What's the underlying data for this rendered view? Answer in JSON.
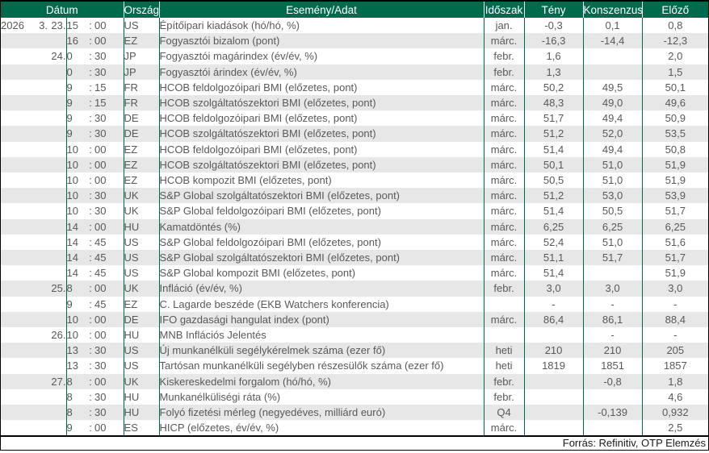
{
  "table": {
    "headers": {
      "datum": "Dátum",
      "orszag": "Ország",
      "esemeny": "Esemény/Adat",
      "idoszak": "Időszak",
      "teny": "Tény",
      "konszenzus": "Konszenzus",
      "elozo": "Előző"
    },
    "time_separator": ":",
    "rows": [
      [
        "2026",
        "3.",
        "23.",
        "15",
        "00",
        "US",
        "Építőipari kiadások (hó/hó, %)",
        "jan.",
        "-0,3",
        "0,1",
        "0,8"
      ],
      [
        "",
        "",
        "",
        "16",
        "00",
        "EZ",
        "Fogyasztói bizalom (pont)",
        "márc.",
        "-16,3",
        "-14,4",
        "-12,3"
      ],
      [
        "",
        "",
        "24.",
        "0",
        "30",
        "JP",
        "Fogyasztói magárindex (év/év, %)",
        "febr.",
        "1,6",
        "",
        "2,0"
      ],
      [
        "",
        "",
        "",
        "0",
        "30",
        "JP",
        "Fogyasztói árindex (év/év, %)",
        "febr.",
        "1,3",
        "",
        "1,5"
      ],
      [
        "",
        "",
        "",
        "9",
        "15",
        "FR",
        "HCOB feldolgozóipari BMI (előzetes, pont)",
        "márc.",
        "50,2",
        "49,5",
        "50,1"
      ],
      [
        "",
        "",
        "",
        "9",
        "15",
        "FR",
        "HCOB szolgáltatószektori BMI (előzetes, pont)",
        "márc.",
        "48,3",
        "49,0",
        "49,6"
      ],
      [
        "",
        "",
        "",
        "9",
        "30",
        "DE",
        "HCOB feldolgozóipari BMI (előzetes, pont)",
        "márc.",
        "51,7",
        "49,4",
        "50,9"
      ],
      [
        "",
        "",
        "",
        "9",
        "30",
        "DE",
        "HCOB szolgáltatószektori BMI (előzetes, pont)",
        "márc.",
        "51,2",
        "52,0",
        "53,5"
      ],
      [
        "",
        "",
        "",
        "10",
        "00",
        "EZ",
        "HCOB feldolgozóipari BMI (előzetes, pont)",
        "márc.",
        "51,4",
        "49,4",
        "50,8"
      ],
      [
        "",
        "",
        "",
        "10",
        "00",
        "EZ",
        "HCOB szolgáltatószektori BMI (előzetes, pont)",
        "márc.",
        "50,1",
        "51,0",
        "51,9"
      ],
      [
        "",
        "",
        "",
        "10",
        "00",
        "EZ",
        "HCOB kompozit BMI (előzetes, pont)",
        "márc.",
        "50,5",
        "51,0",
        "51,9"
      ],
      [
        "",
        "",
        "",
        "10",
        "30",
        "UK",
        "S&P Global szolgáltatószektori BMI (előzetes, pont)",
        "márc.",
        "51,2",
        "53,0",
        "53,9"
      ],
      [
        "",
        "",
        "",
        "10",
        "30",
        "UK",
        "S&P Global feldolgozóipari BMI (előzetes, pont)",
        "márc.",
        "51,4",
        "50,5",
        "51,7"
      ],
      [
        "",
        "",
        "",
        "14",
        "00",
        "HU",
        "Kamatdöntés (%)",
        "márc.",
        "6,25",
        "6,25",
        "6,25"
      ],
      [
        "",
        "",
        "",
        "14",
        "45",
        "US",
        "S&P Global feldolgozóipari BMI (előzetes, pont)",
        "márc.",
        "52,4",
        "51,0",
        "51,6"
      ],
      [
        "",
        "",
        "",
        "14",
        "45",
        "US",
        "S&P Global szolgáltatószektori BMI (előzetes, pont)",
        "márc.",
        "51,1",
        "51,7",
        "51,7"
      ],
      [
        "",
        "",
        "",
        "14",
        "45",
        "US",
        "S&P Global kompozit BMI (előzetes, pont)",
        "márc.",
        "51,4",
        "",
        "51,9"
      ],
      [
        "",
        "",
        "25.",
        "8",
        "00",
        "UK",
        "Infláció (év/év, %)",
        "febr.",
        "3,0",
        "3,0",
        "3,0"
      ],
      [
        "",
        "",
        "",
        "9",
        "45",
        "EZ",
        "C. Lagarde beszéde (EKB Watchers konferencia)",
        "",
        "-",
        "-",
        "-"
      ],
      [
        "",
        "",
        "",
        "10",
        "00",
        "DE",
        "IFO gazdasági hangulat index (pont)",
        "márc.",
        "86,4",
        "86,1",
        "88,4"
      ],
      [
        "",
        "",
        "26.",
        "10",
        "00",
        "HU",
        "MNB Inflációs Jelentés",
        "",
        "",
        "-",
        "-"
      ],
      [
        "",
        "",
        "",
        "13",
        "30",
        "US",
        "Új munkanélküli segélykérelmek száma (ezer fő)",
        "heti",
        "210",
        "210",
        "205"
      ],
      [
        "",
        "",
        "",
        "13",
        "30",
        "US",
        "Tartósan munkanélküli segélyben részesülők száma (ezer fő)",
        "heti",
        "1819",
        "1851",
        "1857"
      ],
      [
        "",
        "",
        "27.",
        "8",
        "00",
        "UK",
        "Kiskereskedelmi forgalom (hó/hó, %)",
        "febr.",
        "",
        "-0,8",
        "1,8"
      ],
      [
        "",
        "",
        "",
        "8",
        "30",
        "HU",
        "Munkanélküliségi ráta (%)",
        "febr.",
        "",
        "",
        "4,6"
      ],
      [
        "",
        "",
        "",
        "8",
        "30",
        "HU",
        "Folyó fizetési mérleg (negyedéves, milliárd euró)",
        "Q4",
        "",
        "-0,139",
        "0,932"
      ],
      [
        "",
        "",
        "",
        "9",
        "00",
        "ES",
        "HICP (előzetes, év/év, %)",
        "márc.",
        "",
        "",
        "2,5"
      ]
    ]
  },
  "footer": {
    "source": "Forrás: Refinitiv, OTP Elemzés"
  },
  "colors": {
    "header_green": "#006A4D",
    "stripe_gray": "#E7E7E7",
    "text_gray": "#595959",
    "border_black": "#000000"
  }
}
